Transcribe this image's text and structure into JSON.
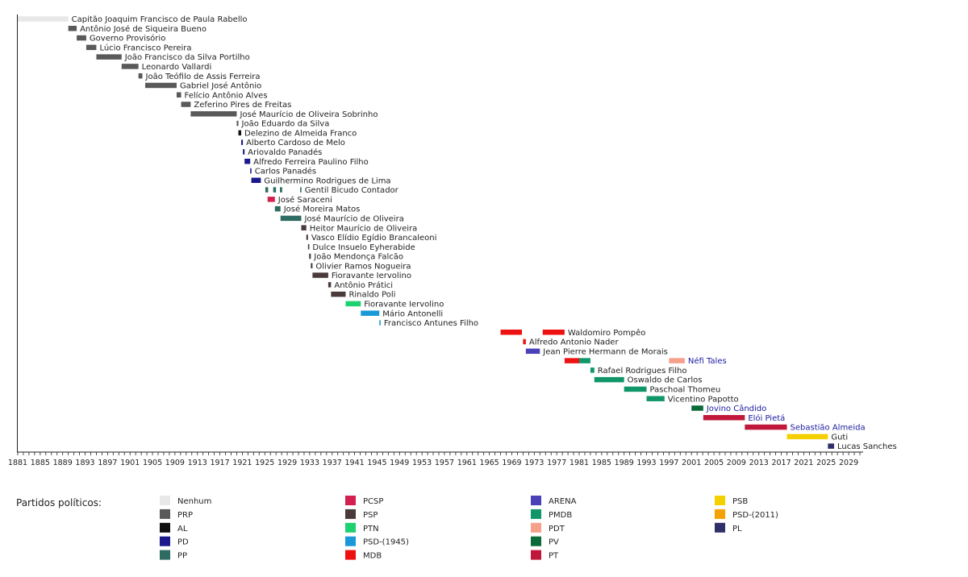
{
  "chart_data": {
    "type": "timeline",
    "x_ticks": [
      1881,
      1885,
      1889,
      1893,
      1897,
      1901,
      1905,
      1909,
      1913,
      1917,
      1921,
      1925,
      1929,
      1933,
      1937,
      1941,
      1945,
      1949,
      1953,
      1957,
      1961,
      1965,
      1969,
      1973,
      1977,
      1981,
      1985,
      1989,
      1993,
      1997,
      2001,
      2005,
      2009,
      2013,
      2017,
      2021,
      2025,
      2029
    ],
    "xlim": [
      1881,
      2031
    ],
    "legend_title": "Partidos políticos:",
    "parties": [
      {
        "key": "Nenhum",
        "label": "Nenhum",
        "color": "#e8e8e8"
      },
      {
        "key": "PRP",
        "label": "PRP",
        "color": "#595959"
      },
      {
        "key": "AL",
        "label": "AL",
        "color": "#111111"
      },
      {
        "key": "PD",
        "label": "PD",
        "color": "#1a1a8c"
      },
      {
        "key": "PP",
        "label": "PP",
        "color": "#2e6b63"
      },
      {
        "key": "PCSP",
        "label": "PCSP",
        "color": "#d4204f"
      },
      {
        "key": "PSP",
        "label": "PSP",
        "color": "#4a3a3a"
      },
      {
        "key": "PTN",
        "label": "PTN",
        "color": "#1dd070"
      },
      {
        "key": "PSD1945",
        "label": "PSD-(1945)",
        "color": "#1a99d8"
      },
      {
        "key": "MDB",
        "label": "MDB",
        "color": "#ee1111"
      },
      {
        "key": "ARENA",
        "label": "ARENA",
        "color": "#4a40b8"
      },
      {
        "key": "PMDB",
        "label": "PMDB",
        "color": "#11966a"
      },
      {
        "key": "PDT",
        "label": "PDT",
        "color": "#f5a08a"
      },
      {
        "key": "PV",
        "label": "PV",
        "color": "#0a6a38"
      },
      {
        "key": "PT",
        "label": "PT",
        "color": "#c0183a"
      },
      {
        "key": "PSB",
        "label": "PSB",
        "color": "#f5d000"
      },
      {
        "key": "PSD2011",
        "label": "PSD-(2011)",
        "color": "#f5a100"
      },
      {
        "key": "PL",
        "label": "PL",
        "color": "#2f2f6a"
      }
    ],
    "rows": [
      {
        "name": "Capitão Joaquim Francisco de Paula Rabello",
        "blue": false,
        "segments": [
          [
            1881,
            1890,
            "Nenhum"
          ]
        ]
      },
      {
        "name": "Antônio José de Siqueira Bueno",
        "blue": false,
        "segments": [
          [
            1890,
            1891.5,
            "PRP"
          ]
        ]
      },
      {
        "name": "Governo Provisório",
        "blue": false,
        "segments": [
          [
            1891.5,
            1893.2,
            "PRP"
          ]
        ]
      },
      {
        "name": "Lúcio Francisco Pereira",
        "blue": false,
        "segments": [
          [
            1893.2,
            1895,
            "PRP"
          ]
        ]
      },
      {
        "name": "João Francisco da Silva Portilho",
        "blue": false,
        "segments": [
          [
            1895,
            1899.5,
            "PRP"
          ]
        ]
      },
      {
        "name": "Leonardo Vallardi",
        "blue": false,
        "segments": [
          [
            1899.5,
            1902.5,
            "PRP"
          ]
        ]
      },
      {
        "name": "João Teófilo de Assis Ferreira",
        "blue": false,
        "segments": [
          [
            1902.5,
            1903.2,
            "PRP"
          ]
        ]
      },
      {
        "name": "Gabriel José Antônio",
        "blue": false,
        "segments": [
          [
            1903.7,
            1909.3,
            "PRP"
          ]
        ]
      },
      {
        "name": "Felício Antônio Alves",
        "blue": false,
        "segments": [
          [
            1909.3,
            1910.1,
            "PRP"
          ]
        ]
      },
      {
        "name": "Zeferino Pires de Freitas",
        "blue": false,
        "segments": [
          [
            1910.1,
            1911.8,
            "PRP"
          ]
        ]
      },
      {
        "name": "José Maurício de Oliveira Sobrinho",
        "blue": false,
        "segments": [
          [
            1911.8,
            1920,
            "PRP"
          ]
        ]
      },
      {
        "name": "João Eduardo da Silva",
        "blue": false,
        "segments": [
          [
            1920,
            1920.3,
            "PRP"
          ]
        ]
      },
      {
        "name": "Delezino de Almeida Franco",
        "blue": false,
        "segments": [
          [
            1920.3,
            1920.8,
            "AL"
          ]
        ]
      },
      {
        "name": "Alberto Cardoso de Melo",
        "blue": false,
        "segments": [
          [
            1920.8,
            1921.1,
            "PD"
          ]
        ]
      },
      {
        "name": "Ariovaldo Panadés",
        "blue": false,
        "segments": [
          [
            1921.1,
            1921.4,
            "PD"
          ]
        ]
      },
      {
        "name": "Alfredo Ferreira Paulino Filho",
        "blue": false,
        "segments": [
          [
            1921.4,
            1922.4,
            "PD"
          ]
        ]
      },
      {
        "name": "Carlos Panadés",
        "blue": false,
        "segments": [
          [
            1922.4,
            1922.6,
            "PD"
          ]
        ]
      },
      {
        "name": "Guilhermino Rodrigues de Lima",
        "blue": false,
        "segments": [
          [
            1922.6,
            1924.3,
            "PD"
          ]
        ]
      },
      {
        "name": "Gentil Bicudo Contador",
        "blue": false,
        "segments": [
          [
            1925.1,
            1925.6,
            "PP"
          ],
          [
            1926.5,
            1927,
            "PP"
          ],
          [
            1927.7,
            1928.1,
            "PP"
          ],
          [
            1931.3,
            1931.5,
            "PP"
          ]
        ]
      },
      {
        "name": "José Saraceni",
        "blue": false,
        "segments": [
          [
            1925.5,
            1926.8,
            "PCSP"
          ]
        ]
      },
      {
        "name": "José Moreira Matos",
        "blue": false,
        "segments": [
          [
            1926.8,
            1927.8,
            "PP"
          ]
        ]
      },
      {
        "name": "José Maurício de Oliveira",
        "blue": false,
        "segments": [
          [
            1927.8,
            1931.5,
            "PP"
          ]
        ]
      },
      {
        "name": "Heitor Maurício de Oliveira",
        "blue": false,
        "segments": [
          [
            1931.5,
            1932.4,
            "PSP"
          ]
        ]
      },
      {
        "name": "Vasco Elídio Egídio Brancaleoni",
        "blue": false,
        "segments": [
          [
            1932.4,
            1932.7,
            "PSP"
          ]
        ]
      },
      {
        "name": "Dulce Insuelo Eyherabide",
        "blue": false,
        "segments": [
          [
            1932.7,
            1932.9,
            "PSP"
          ]
        ]
      },
      {
        "name": "João Mendonça Falcão",
        "blue": false,
        "segments": [
          [
            1932.9,
            1933.2,
            "PSP"
          ]
        ]
      },
      {
        "name": "Olivier Ramos Nogueira",
        "blue": false,
        "segments": [
          [
            1933.2,
            1933.5,
            "PSP"
          ]
        ]
      },
      {
        "name": "Fioravante Iervolino",
        "blue": false,
        "segments": [
          [
            1933.5,
            1936.3,
            "PSP"
          ]
        ]
      },
      {
        "name": "Antônio Prátici",
        "blue": false,
        "segments": [
          [
            1936.3,
            1936.8,
            "PSP"
          ]
        ]
      },
      {
        "name": "Rinaldo Poli",
        "blue": false,
        "segments": [
          [
            1936.8,
            1939.4,
            "PSP"
          ]
        ]
      },
      {
        "name": "Fioravante Iervolino",
        "blue": false,
        "segments": [
          [
            1939.4,
            1942.1,
            "PTN"
          ]
        ]
      },
      {
        "name": "Mário Antonelli",
        "blue": false,
        "segments": [
          [
            1942.1,
            1945.4,
            "PSD1945"
          ]
        ]
      },
      {
        "name": "Francisco Antunes Filho",
        "blue": false,
        "segments": [
          [
            1945.4,
            1945.6,
            "PSD1945"
          ]
        ]
      },
      {
        "name": "Waldomiro Pompêo",
        "blue": false,
        "segments": [
          [
            1967,
            1970.8,
            "MDB"
          ],
          [
            1974.5,
            1978.4,
            "MDB"
          ]
        ]
      },
      {
        "name": "Alfredo Antonio Nader",
        "blue": false,
        "segments": [
          [
            1971,
            1971.5,
            "MDB"
          ]
        ]
      },
      {
        "name": "Jean Pierre Hermann de Morais",
        "blue": false,
        "segments": [
          [
            1971.5,
            1974,
            "ARENA"
          ]
        ]
      },
      {
        "name": "Néfi Tales",
        "blue": true,
        "segments": [
          [
            1978.4,
            1981,
            "MDB"
          ],
          [
            1981,
            1983,
            "PMDB"
          ],
          [
            1997,
            1999.8,
            "PDT"
          ]
        ]
      },
      {
        "name": "Rafael Rodrigues Filho",
        "blue": false,
        "segments": [
          [
            1983,
            1983.7,
            "PMDB"
          ]
        ]
      },
      {
        "name": "Oswaldo de Carlos",
        "blue": false,
        "segments": [
          [
            1983.7,
            1989,
            "PMDB"
          ]
        ]
      },
      {
        "name": "Paschoal Thomeu",
        "blue": false,
        "segments": [
          [
            1989,
            1993,
            "PMDB"
          ]
        ]
      },
      {
        "name": "Vicentino Papotto",
        "blue": false,
        "segments": [
          [
            1993,
            1996.2,
            "PMDB"
          ]
        ]
      },
      {
        "name": "Jovino Cândido",
        "blue": true,
        "segments": [
          [
            2001,
            2003.1,
            "PV"
          ]
        ]
      },
      {
        "name": "Elói Pietá",
        "blue": true,
        "segments": [
          [
            2003.1,
            2010.5,
            "PT"
          ]
        ]
      },
      {
        "name": "Sebastião Almeida",
        "blue": true,
        "segments": [
          [
            2010.5,
            2018,
            "PT"
          ]
        ]
      },
      {
        "name": "Guti",
        "blue": false,
        "segments": [
          [
            2018,
            2025.3,
            "PSB"
          ]
        ]
      },
      {
        "name": "Lucas Sanches",
        "blue": false,
        "segments": [
          [
            2025.3,
            2026.4,
            "PL"
          ]
        ]
      }
    ]
  }
}
